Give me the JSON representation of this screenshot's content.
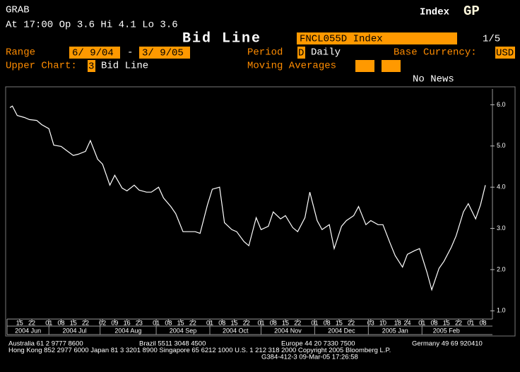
{
  "header": {
    "app": "GRAB",
    "quote": "At 17:00  Op 3.6 Hi 4.1 Lo 3.6",
    "market": "Index",
    "function": "GP",
    "title": "Bid Line",
    "security": "FNCL055D Index",
    "page": "1/5"
  },
  "form": {
    "range_label": "Range",
    "range_start": "6/ 9/04",
    "range_sep": "-",
    "range_end": "3/ 9/05",
    "period_label": "Period",
    "period_code": "D",
    "period_name": "Daily",
    "currency_label": "Base Currency:",
    "currency": "USD",
    "upper_label": "Upper Chart:",
    "upper_code": "3",
    "upper_name": "Bid Line",
    "ma_label": "Moving Averages",
    "news": "No News"
  },
  "chart_data": {
    "type": "line",
    "color": "#ffffff",
    "x": [
      "2004-06-09",
      "2004-06-10",
      "2004-06-14",
      "2004-06-17",
      "2004-06-21",
      "2004-06-24",
      "2004-06-28",
      "2004-07-01",
      "2004-07-05",
      "2004-07-08",
      "2004-07-12",
      "2004-07-15",
      "2004-07-19",
      "2004-07-22",
      "2004-07-26",
      "2004-07-29",
      "2004-08-02",
      "2004-08-05",
      "2004-08-09",
      "2004-08-12",
      "2004-08-16",
      "2004-08-19",
      "2004-08-23",
      "2004-08-26",
      "2004-08-30",
      "2004-09-02",
      "2004-09-06",
      "2004-09-09",
      "2004-09-13",
      "2004-09-16",
      "2004-09-20",
      "2004-09-23",
      "2004-09-27",
      "2004-09-30",
      "2004-10-04",
      "2004-10-07",
      "2004-10-11",
      "2004-10-14",
      "2004-10-18",
      "2004-10-21",
      "2004-10-25",
      "2004-10-28",
      "2004-11-01",
      "2004-11-04",
      "2004-11-08",
      "2004-11-11",
      "2004-11-15",
      "2004-11-18",
      "2004-11-22",
      "2004-11-25",
      "2004-11-29",
      "2004-12-02",
      "2004-12-06",
      "2004-12-09",
      "2004-12-13",
      "2004-12-16",
      "2004-12-20",
      "2004-12-23",
      "2004-12-27",
      "2004-12-30",
      "2005-01-03",
      "2005-01-06",
      "2005-01-10",
      "2005-01-13",
      "2005-01-17",
      "2005-01-20",
      "2005-01-24",
      "2005-01-27",
      "2005-01-31",
      "2005-02-03",
      "2005-02-07",
      "2005-02-10",
      "2005-02-14",
      "2005-02-17",
      "2005-02-21",
      "2005-02-24",
      "2005-02-28",
      "2005-03-03",
      "2005-03-07",
      "2005-03-09"
    ],
    "values": [
      5.93,
      5.97,
      5.74,
      5.69,
      5.64,
      5.62,
      5.52,
      5.42,
      5.02,
      4.99,
      4.9,
      4.77,
      4.8,
      4.87,
      5.13,
      4.68,
      4.56,
      4.05,
      4.29,
      3.98,
      3.91,
      4.05,
      3.93,
      3.88,
      3.88,
      4.0,
      3.74,
      3.53,
      3.36,
      2.92,
      2.92,
      2.92,
      2.88,
      3.57,
      3.95,
      4.0,
      3.14,
      2.97,
      2.92,
      2.68,
      2.58,
      3.26,
      2.97,
      3.05,
      3.4,
      3.23,
      3.31,
      3.02,
      2.92,
      3.26,
      3.88,
      3.19,
      2.97,
      3.09,
      2.51,
      3.05,
      3.19,
      3.31,
      3.53,
      3.09,
      3.19,
      3.09,
      3.09,
      2.63,
      2.34,
      2.06,
      2.37,
      2.46,
      2.51,
      1.94,
      1.51,
      2.03,
      2.2,
      2.54,
      2.82,
      3.4,
      3.6,
      3.23,
      3.57,
      4.05
    ],
    "ylim": [
      0.8,
      6.35
    ],
    "yticks": [
      {
        "value": 1,
        "label": "1.0"
      },
      {
        "value": 2,
        "label": "2.0"
      },
      {
        "value": 3,
        "label": "3.0"
      },
      {
        "value": 4,
        "label": "4.0"
      },
      {
        "value": 5,
        "label": "5.0"
      },
      {
        "value": 6,
        "label": "6.0"
      }
    ],
    "xticks": [
      {
        "value": "2004-06-15",
        "label": "15"
      },
      {
        "value": "2004-06-22",
        "label": "22"
      },
      {
        "value": "2004-07-01",
        "label": "01"
      },
      {
        "value": "2004-07-08",
        "label": "08"
      },
      {
        "value": "2004-07-15",
        "label": "15"
      },
      {
        "value": "2004-07-22",
        "label": "22"
      },
      {
        "value": "2004-08-02",
        "label": "02"
      },
      {
        "value": "2004-08-09",
        "label": "09"
      },
      {
        "value": "2004-08-16",
        "label": "16"
      },
      {
        "value": "2004-08-23",
        "label": "23"
      },
      {
        "value": "2004-09-01",
        "label": "01"
      },
      {
        "value": "2004-09-08",
        "label": "08"
      },
      {
        "value": "2004-09-15",
        "label": "15"
      },
      {
        "value": "2004-09-22",
        "label": "22"
      },
      {
        "value": "2004-10-01",
        "label": "01"
      },
      {
        "value": "2004-10-08",
        "label": "08"
      },
      {
        "value": "2004-10-15",
        "label": "15"
      },
      {
        "value": "2004-10-22",
        "label": "22"
      },
      {
        "value": "2004-11-01",
        "label": "01"
      },
      {
        "value": "2004-11-08",
        "label": "08"
      },
      {
        "value": "2004-11-15",
        "label": "15"
      },
      {
        "value": "2004-11-22",
        "label": "22"
      },
      {
        "value": "2004-12-01",
        "label": "01"
      },
      {
        "value": "2004-12-08",
        "label": "08"
      },
      {
        "value": "2004-12-15",
        "label": "15"
      },
      {
        "value": "2004-12-22",
        "label": "22"
      },
      {
        "value": "2005-01-03",
        "label": "03"
      },
      {
        "value": "2005-01-10",
        "label": "10"
      },
      {
        "value": "2005-01-18",
        "label": "18"
      },
      {
        "value": "2005-01-24",
        "label": "24"
      },
      {
        "value": "2005-02-01",
        "label": "01"
      },
      {
        "value": "2005-02-08",
        "label": "08"
      },
      {
        "value": "2005-02-15",
        "label": "15"
      },
      {
        "value": "2005-02-22",
        "label": "22"
      },
      {
        "value": "2005-03-01",
        "label": "01"
      },
      {
        "value": "2005-03-08",
        "label": "08"
      }
    ],
    "months": [
      {
        "value": "2004-06",
        "label": "2004 Jun"
      },
      {
        "value": "2004-07",
        "label": "2004 Jul"
      },
      {
        "value": "2004-08",
        "label": "2004 Aug"
      },
      {
        "value": "2004-09",
        "label": "2004 Sep"
      },
      {
        "value": "2004-10",
        "label": "2004 Oct"
      },
      {
        "value": "2004-11",
        "label": "2004 Nov"
      },
      {
        "value": "2004-12",
        "label": "2004 Dec"
      },
      {
        "value": "2005-01",
        "label": "2005 Jan"
      },
      {
        "value": "2005-02",
        "label": "2005 Feb"
      }
    ]
  },
  "footer": {
    "lines": [
      [
        "Australia 61 2 9777 8600",
        "Brazil 5511 3048 4500",
        "Europe 44 20 7330 7500",
        "Germany 49 69 920410"
      ],
      [
        "Hong Kong 852 2977 6000 Japan 81 3 3201 8900 Singapore 65 6212 1000 U.S. 1 212 318 2000 Copyright 2005 Bloomberg L.P."
      ],
      [
        "G384-412-3 09-Mar-05 17:26:58"
      ]
    ]
  }
}
